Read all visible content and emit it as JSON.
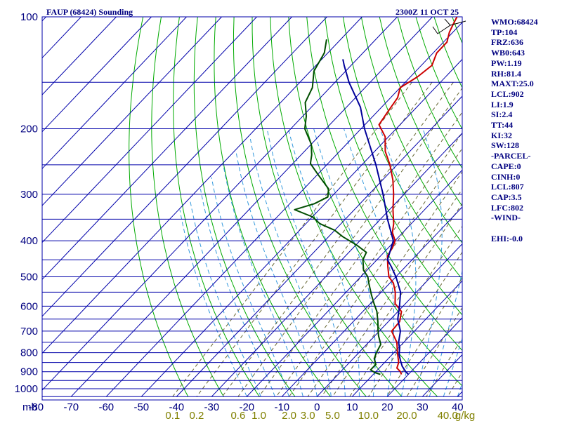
{
  "title": "FAUP (68424) Sounding",
  "valid_time": "2300Z 11 OCT 25",
  "indices": [
    "WMO:68424",
    "TP:104",
    "FRZ:636",
    "WB0:643",
    "PW:1.19",
    "RH:81.4",
    "MAXT:25.0",
    "LCL:902",
    "LI:1.9",
    "SI:2.4",
    "TT:44",
    "KI:32",
    "SW:128",
    "-PARCEL-",
    "CAPE:0",
    "CINH:0",
    "LCL:807",
    "CAP:3.5",
    "LFC:802",
    "-WIND-",
    "",
    "EHI:-0.0"
  ],
  "chart_data": {
    "type": "line",
    "chart_kind": "skew-T log-P sounding",
    "pressure_unit_label": "mb",
    "mixing_ratio_unit_label": "g/kg",
    "pressure_ticks": [
      100,
      200,
      300,
      400,
      500,
      600,
      700,
      800,
      900,
      1000
    ],
    "pressure_gridlines": [
      100,
      150,
      200,
      250,
      300,
      350,
      400,
      450,
      500,
      550,
      600,
      650,
      700,
      750,
      800,
      850,
      900,
      950,
      1000,
      1050
    ],
    "temperature_ticks": [
      -80,
      -70,
      -60,
      -50,
      -40,
      -30,
      -20,
      -10,
      0,
      10,
      20,
      30,
      40
    ],
    "temperature_tick_labels": [
      "-80",
      "-70",
      "-60",
      "-50",
      "-40",
      "-30",
      "-20",
      "-10",
      "0",
      "10",
      "20",
      "30",
      "40"
    ],
    "mixing_ratio_labels": [
      "0.1",
      "0.2",
      "0.6",
      "1.0",
      "2.0",
      "3.0",
      "5.0",
      "10.0",
      "20.0",
      "40.0"
    ],
    "mixing_ratio_values": [
      0.1,
      0.2,
      0.6,
      1.0,
      2.0,
      3.0,
      5.0,
      10.0,
      20.0,
      40.0
    ],
    "ylim": [
      1050,
      100
    ],
    "xlim_at_surface": [
      -80,
      40
    ],
    "series": [
      {
        "role": "temperature",
        "color": "#cc0000",
        "points": [
          [
            915,
            18
          ],
          [
            900,
            17
          ],
          [
            880,
            15
          ],
          [
            850,
            14
          ],
          [
            800,
            11
          ],
          [
            750,
            8
          ],
          [
            700,
            3.5
          ],
          [
            660,
            3.2
          ],
          [
            620,
            1
          ],
          [
            590,
            -3
          ],
          [
            550,
            -6
          ],
          [
            520,
            -9
          ],
          [
            500,
            -12
          ],
          [
            470,
            -15
          ],
          [
            440,
            -18
          ],
          [
            415,
            -19
          ],
          [
            400,
            -20
          ],
          [
            380,
            -23
          ],
          [
            360,
            -25
          ],
          [
            330,
            -29
          ],
          [
            300,
            -33
          ],
          [
            275,
            -37
          ],
          [
            250,
            -42
          ],
          [
            230,
            -47
          ],
          [
            210,
            -51
          ],
          [
            195,
            -56
          ],
          [
            180,
            -57
          ],
          [
            165,
            -58
          ],
          [
            155,
            -60
          ],
          [
            145,
            -58
          ],
          [
            135,
            -57
          ],
          [
            125,
            -59
          ],
          [
            117,
            -59
          ],
          [
            110,
            -61
          ],
          [
            105,
            -62
          ],
          [
            100,
            -63
          ]
        ]
      },
      {
        "role": "dewpoint",
        "color": "#004d00",
        "points": [
          [
            915,
            12
          ],
          [
            905,
            10
          ],
          [
            890,
            8
          ],
          [
            860,
            8
          ],
          [
            830,
            6
          ],
          [
            800,
            5
          ],
          [
            760,
            4
          ],
          [
            720,
            1
          ],
          [
            690,
            -1
          ],
          [
            660,
            -3
          ],
          [
            620,
            -6
          ],
          [
            590,
            -9
          ],
          [
            560,
            -12
          ],
          [
            520,
            -16
          ],
          [
            500,
            -18
          ],
          [
            480,
            -21
          ],
          [
            450,
            -24
          ],
          [
            430,
            -25
          ],
          [
            410,
            -30
          ],
          [
            390,
            -36
          ],
          [
            375,
            -40
          ],
          [
            360,
            -46
          ],
          [
            345,
            -50
          ],
          [
            330,
            -57
          ],
          [
            318,
            -53
          ],
          [
            305,
            -51
          ],
          [
            290,
            -53
          ],
          [
            265,
            -60
          ],
          [
            248,
            -65
          ],
          [
            235,
            -67
          ],
          [
            220,
            -70
          ],
          [
            200,
            -76
          ],
          [
            185,
            -79
          ],
          [
            170,
            -83
          ],
          [
            155,
            -85
          ],
          [
            140,
            -89
          ],
          [
            125,
            -91
          ],
          [
            115,
            -94
          ]
        ]
      },
      {
        "role": "parcel",
        "color": "#000099",
        "points": [
          [
            915,
            20
          ],
          [
            900,
            18.5
          ],
          [
            870,
            16
          ],
          [
            840,
            14
          ],
          [
            810,
            12
          ],
          [
            780,
            10.5
          ],
          [
            750,
            8.5
          ],
          [
            700,
            6
          ],
          [
            650,
            2
          ],
          [
            600,
            -1
          ],
          [
            550,
            -4.5
          ],
          [
            500,
            -10
          ],
          [
            470,
            -14
          ],
          [
            450,
            -17
          ],
          [
            400,
            -20.5
          ],
          [
            350,
            -28
          ],
          [
            300,
            -36
          ],
          [
            250,
            -46
          ],
          [
            200,
            -59
          ],
          [
            175,
            -66
          ],
          [
            150,
            -76
          ],
          [
            135,
            -82
          ],
          [
            130,
            -84
          ]
        ]
      }
    ]
  }
}
